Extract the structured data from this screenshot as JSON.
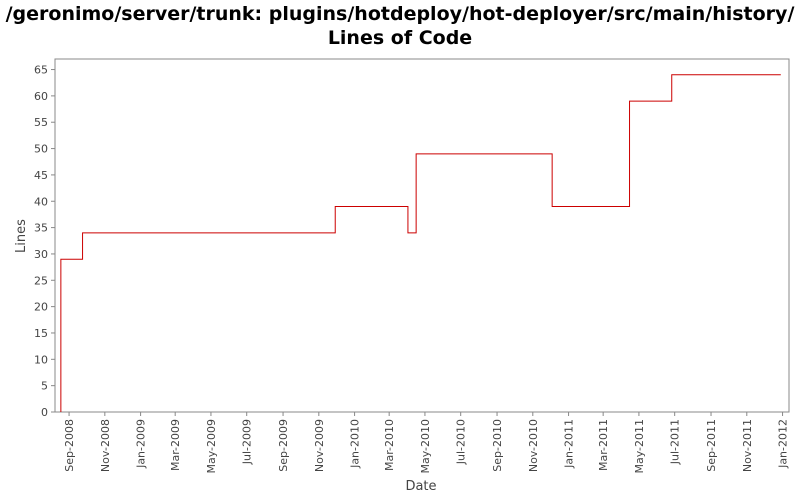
{
  "chart_data": {
    "type": "line",
    "line_style": "step",
    "title": "/geronimo/server/trunk: plugins/hotdeploy/hot-deployer/src/main/history/",
    "subtitle": "Lines of Code",
    "xlabel": "Date",
    "ylabel": "Lines",
    "xlim": [
      "2008-08-08",
      "2012-01-12"
    ],
    "ylim": [
      0,
      67
    ],
    "y_ticks": [
      0,
      5,
      10,
      15,
      20,
      25,
      30,
      35,
      40,
      45,
      50,
      55,
      60,
      65
    ],
    "x_ticks": [
      {
        "date": "2008-09-01",
        "label": "Sep-2008"
      },
      {
        "date": "2008-11-01",
        "label": "Nov-2008"
      },
      {
        "date": "2009-01-01",
        "label": "Jan-2009"
      },
      {
        "date": "2009-03-01",
        "label": "Mar-2009"
      },
      {
        "date": "2009-05-01",
        "label": "May-2009"
      },
      {
        "date": "2009-07-01",
        "label": "Jul-2009"
      },
      {
        "date": "2009-09-01",
        "label": "Sep-2009"
      },
      {
        "date": "2009-11-01",
        "label": "Nov-2009"
      },
      {
        "date": "2010-01-01",
        "label": "Jan-2010"
      },
      {
        "date": "2010-03-01",
        "label": "Mar-2010"
      },
      {
        "date": "2010-05-01",
        "label": "May-2010"
      },
      {
        "date": "2010-07-01",
        "label": "Jul-2010"
      },
      {
        "date": "2010-09-01",
        "label": "Sep-2010"
      },
      {
        "date": "2010-11-01",
        "label": "Nov-2010"
      },
      {
        "date": "2011-01-01",
        "label": "Jan-2011"
      },
      {
        "date": "2011-03-01",
        "label": "Mar-2011"
      },
      {
        "date": "2011-05-01",
        "label": "May-2011"
      },
      {
        "date": "2011-07-01",
        "label": "Jul-2011"
      },
      {
        "date": "2011-09-01",
        "label": "Sep-2011"
      },
      {
        "date": "2011-11-01",
        "label": "Nov-2011"
      },
      {
        "date": "2012-01-01",
        "label": "Jan-2012"
      }
    ],
    "series": [
      {
        "color": "#cc0000",
        "points": [
          {
            "x": "2008-08-18",
            "y": 0
          },
          {
            "x": "2008-08-18",
            "y": 29
          },
          {
            "x": "2008-09-24",
            "y": 34
          },
          {
            "x": "2009-11-29",
            "y": 39
          },
          {
            "x": "2010-04-02",
            "y": 34
          },
          {
            "x": "2010-04-16",
            "y": 49
          },
          {
            "x": "2010-12-04",
            "y": 39
          },
          {
            "x": "2011-04-15",
            "y": 59
          },
          {
            "x": "2011-06-26",
            "y": 64
          },
          {
            "x": "2011-12-29",
            "y": 64
          }
        ]
      }
    ],
    "grid": false,
    "legend": "none",
    "background": "#ffffff",
    "axis_color": "#888888"
  }
}
